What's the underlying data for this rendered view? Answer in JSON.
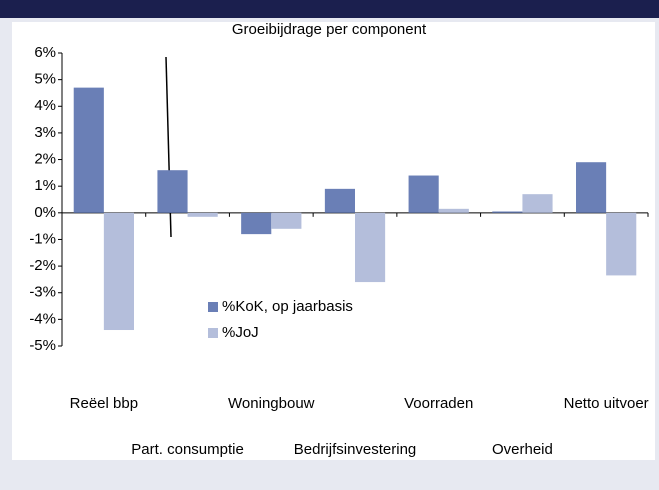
{
  "chart_data": {
    "type": "bar",
    "title": "Groeibijdrage per component",
    "categories": [
      "Reëel bbp",
      "Part. consumptie",
      "Woningbouw",
      "Bedrijfsinvestering",
      "Voorraden",
      "Overheid",
      "Netto uitvoer"
    ],
    "series": [
      {
        "name": "%KoK, op jaarbasis",
        "color": "#6a7fb6",
        "values": [
          4.7,
          1.6,
          -0.8,
          0.9,
          1.4,
          0.05,
          1.9
        ]
      },
      {
        "name": "%JoJ",
        "color": "#b4bedb",
        "values": [
          -4.4,
          -0.15,
          -0.6,
          -2.6,
          0.15,
          0.7,
          -2.35
        ]
      }
    ],
    "ylim": [
      -5,
      6
    ],
    "yticks": [
      {
        "value": -5,
        "label": "-5%"
      },
      {
        "value": -4,
        "label": "-4%"
      },
      {
        "value": -3,
        "label": "-3%"
      },
      {
        "value": -2,
        "label": "-2%"
      },
      {
        "value": -1,
        "label": "-1%"
      },
      {
        "value": 0,
        "label": "0%"
      },
      {
        "value": 1,
        "label": "1%"
      },
      {
        "value": 2,
        "label": "2%"
      },
      {
        "value": 3,
        "label": "3%"
      },
      {
        "value": 4,
        "label": "4%"
      },
      {
        "value": 5,
        "label": "5%"
      },
      {
        "value": 6,
        "label": "6%"
      }
    ],
    "grid": false
  }
}
